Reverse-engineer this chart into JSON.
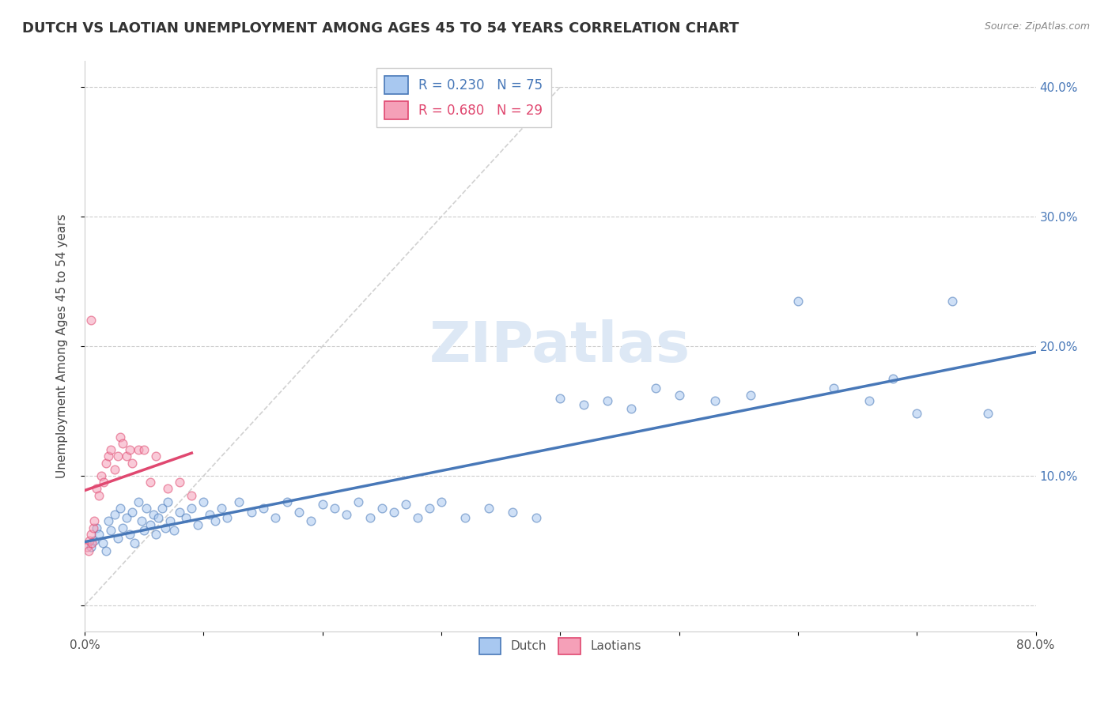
{
  "title": "DUTCH VS LAOTIAN UNEMPLOYMENT AMONG AGES 45 TO 54 YEARS CORRELATION CHART",
  "source": "Source: ZipAtlas.com",
  "ylabel": "Unemployment Among Ages 45 to 54 years",
  "xlim": [
    0.0,
    0.8
  ],
  "ylim": [
    -0.02,
    0.42
  ],
  "xticks": [
    0.0,
    0.1,
    0.2,
    0.3,
    0.4,
    0.5,
    0.6,
    0.7,
    0.8
  ],
  "xticklabels": [
    "0.0%",
    "",
    "",
    "",
    "",
    "",
    "",
    "",
    "80.0%"
  ],
  "yticks": [
    0.1,
    0.2,
    0.3,
    0.4
  ],
  "yticklabels_right": [
    "10.0%",
    "20.0%",
    "30.0%",
    "40.0%"
  ],
  "dutch_color": "#a8c8f0",
  "laotian_color": "#f5a0b8",
  "dutch_line_color": "#4878b8",
  "laotian_line_color": "#e04870",
  "dutch_R": 0.23,
  "dutch_N": 75,
  "laotian_R": 0.68,
  "laotian_N": 29,
  "dutch_x": [
    0.005,
    0.008,
    0.01,
    0.012,
    0.015,
    0.018,
    0.02,
    0.022,
    0.025,
    0.028,
    0.03,
    0.032,
    0.035,
    0.038,
    0.04,
    0.042,
    0.045,
    0.048,
    0.05,
    0.052,
    0.055,
    0.058,
    0.06,
    0.062,
    0.065,
    0.068,
    0.07,
    0.072,
    0.075,
    0.08,
    0.085,
    0.09,
    0.095,
    0.1,
    0.105,
    0.11,
    0.115,
    0.12,
    0.13,
    0.14,
    0.15,
    0.16,
    0.17,
    0.18,
    0.19,
    0.2,
    0.21,
    0.22,
    0.23,
    0.24,
    0.25,
    0.26,
    0.27,
    0.28,
    0.29,
    0.3,
    0.32,
    0.34,
    0.36,
    0.38,
    0.4,
    0.42,
    0.44,
    0.46,
    0.48,
    0.5,
    0.53,
    0.56,
    0.6,
    0.63,
    0.66,
    0.68,
    0.7,
    0.73,
    0.76
  ],
  "dutch_y": [
    0.045,
    0.05,
    0.06,
    0.055,
    0.048,
    0.042,
    0.065,
    0.058,
    0.07,
    0.052,
    0.075,
    0.06,
    0.068,
    0.055,
    0.072,
    0.048,
    0.08,
    0.065,
    0.058,
    0.075,
    0.062,
    0.07,
    0.055,
    0.068,
    0.075,
    0.06,
    0.08,
    0.065,
    0.058,
    0.072,
    0.068,
    0.075,
    0.062,
    0.08,
    0.07,
    0.065,
    0.075,
    0.068,
    0.08,
    0.072,
    0.075,
    0.068,
    0.08,
    0.072,
    0.065,
    0.078,
    0.075,
    0.07,
    0.08,
    0.068,
    0.075,
    0.072,
    0.078,
    0.068,
    0.075,
    0.08,
    0.068,
    0.075,
    0.072,
    0.068,
    0.16,
    0.155,
    0.158,
    0.152,
    0.168,
    0.162,
    0.158,
    0.162,
    0.235,
    0.168,
    0.158,
    0.175,
    0.148,
    0.235,
    0.148
  ],
  "dutch_y_outliers_idx": [
    60,
    61,
    62,
    63,
    64,
    65,
    66,
    67,
    68,
    69,
    70,
    71,
    72,
    73,
    74
  ],
  "laotian_x": [
    0.002,
    0.003,
    0.004,
    0.005,
    0.006,
    0.007,
    0.008,
    0.01,
    0.012,
    0.014,
    0.016,
    0.018,
    0.02,
    0.022,
    0.025,
    0.028,
    0.03,
    0.032,
    0.035,
    0.038,
    0.04,
    0.045,
    0.05,
    0.055,
    0.06,
    0.07,
    0.08,
    0.09,
    0.005
  ],
  "laotian_y": [
    0.045,
    0.042,
    0.05,
    0.055,
    0.048,
    0.06,
    0.065,
    0.09,
    0.085,
    0.1,
    0.095,
    0.11,
    0.115,
    0.12,
    0.105,
    0.115,
    0.13,
    0.125,
    0.115,
    0.12,
    0.11,
    0.12,
    0.12,
    0.095,
    0.115,
    0.09,
    0.095,
    0.085,
    0.22
  ],
  "background_color": "#ffffff",
  "grid_color": "#cccccc",
  "title_color": "#333333",
  "watermark_color": "#dde8f5",
  "title_fontsize": 13,
  "label_fontsize": 11,
  "tick_fontsize": 11,
  "marker_size": 60,
  "marker_alpha": 0.55,
  "marker_lw": 1.0
}
